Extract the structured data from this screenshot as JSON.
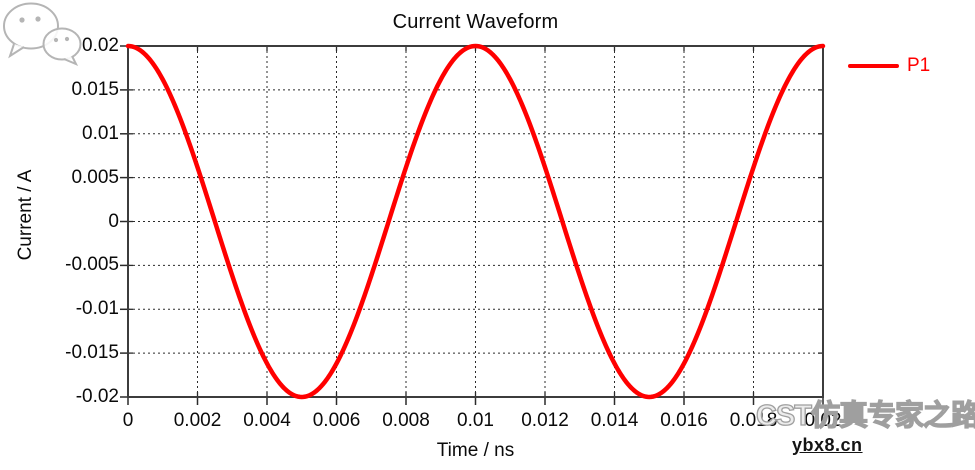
{
  "title": "Current Waveform",
  "legend": [
    {
      "label": "P1",
      "color": "#ff0000"
    }
  ],
  "watermark": {
    "icon": "wechat-icon",
    "brand_text": "CST仿真专家之路",
    "site_text": "ybx8.cn"
  },
  "colors": {
    "series": "#ff0000",
    "frame": "#3c3c3c",
    "grid": "#2b2b2b",
    "text": "#0a0a0a",
    "watermark_outline": "#9f9f9f"
  },
  "chart_data": {
    "type": "line",
    "title": "Current Waveform",
    "xlabel": "Time / ns",
    "ylabel": "Current / A",
    "xlim": [
      0,
      0.02
    ],
    "ylim": [
      -0.02,
      0.02
    ],
    "x_ticks": [
      0,
      0.002,
      0.004,
      0.006,
      0.008,
      0.01,
      0.012,
      0.014,
      0.016,
      0.018,
      0.02
    ],
    "x_tick_labels": [
      "0",
      "0.002",
      "0.004",
      "0.006",
      "0.008",
      "0.01",
      "0.012",
      "0.014",
      "0.016",
      "0.018",
      "0.02"
    ],
    "y_ticks": [
      0.02,
      0.015,
      0.01,
      0.005,
      0,
      -0.005,
      -0.01,
      -0.015,
      -0.02
    ],
    "y_tick_labels": [
      "0.02",
      "0.015",
      "0.01",
      "0.005",
      "0",
      "-0.005",
      "-0.01",
      "-0.015",
      "-0.02"
    ],
    "grid": "dashed",
    "legend_position": "top-right-outside",
    "series": [
      {
        "name": "P1",
        "color": "#ff0000",
        "waveform": "cosine",
        "amplitude_A": 0.02,
        "period_ns": 0.01,
        "phase": "cos",
        "t_start_ns": 0,
        "t_end_ns": 0.02,
        "key_points_ns_A": [
          [
            0,
            0.02
          ],
          [
            0.0025,
            0
          ],
          [
            0.005,
            -0.02
          ],
          [
            0.0075,
            0
          ],
          [
            0.01,
            0.02
          ],
          [
            0.0125,
            0
          ],
          [
            0.015,
            -0.02
          ],
          [
            0.0175,
            0
          ],
          [
            0.02,
            0.02
          ]
        ]
      }
    ]
  }
}
